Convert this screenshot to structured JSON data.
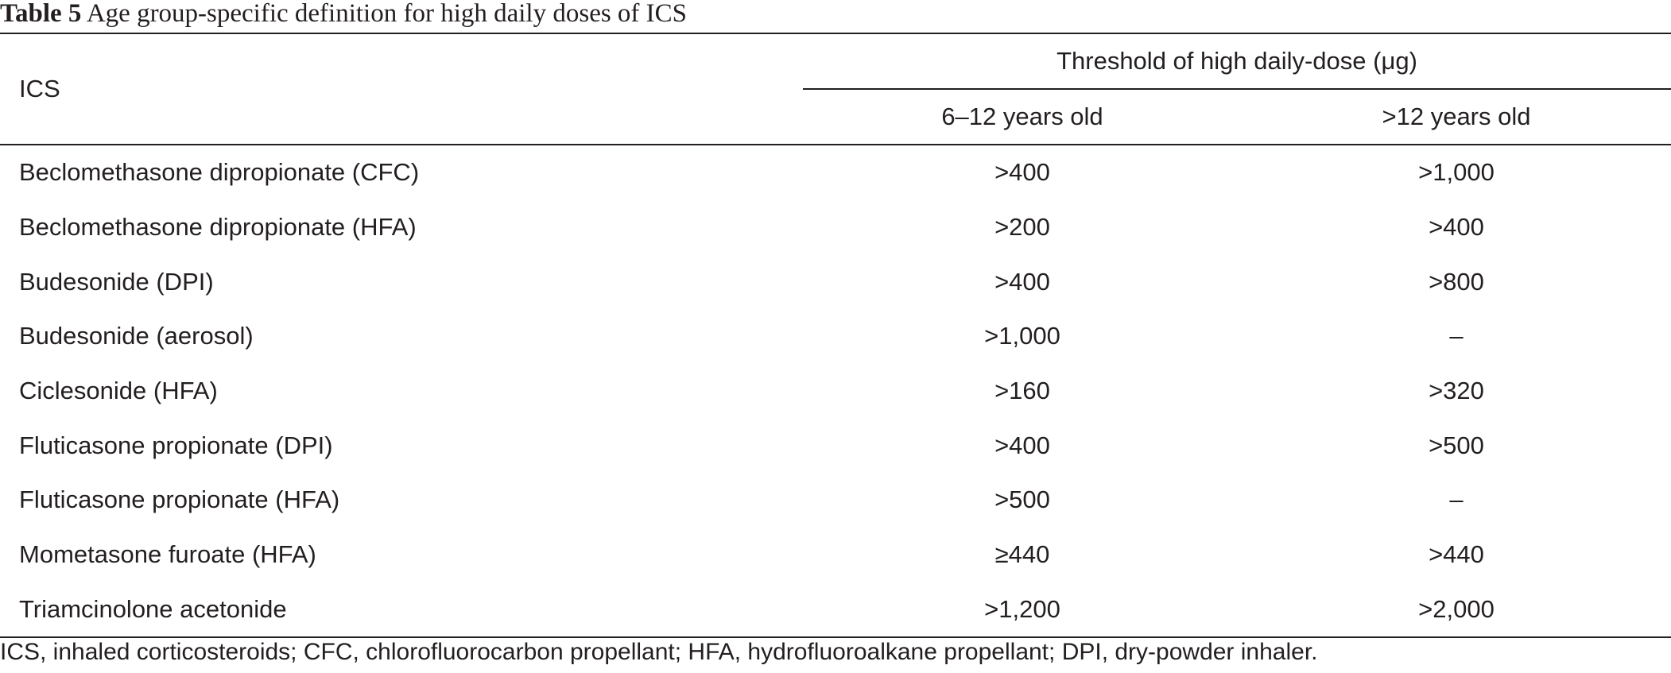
{
  "caption": {
    "label": "Table 5",
    "title": "Age group-specific definition for high daily doses of ICS"
  },
  "header": {
    "first_col": "ICS",
    "group": "Threshold of high daily-dose (μg)",
    "sub_cols": [
      "6–12 years old",
      ">12 years old"
    ]
  },
  "rows": [
    {
      "ics": "Beclomethasone dipropionate (CFC)",
      "age_6_12": ">400",
      "age_over_12": ">1,000"
    },
    {
      "ics": "Beclomethasone dipropionate (HFA)",
      "age_6_12": ">200",
      "age_over_12": ">400"
    },
    {
      "ics": "Budesonide (DPI)",
      "age_6_12": ">400",
      "age_over_12": ">800"
    },
    {
      "ics": "Budesonide (aerosol)",
      "age_6_12": ">1,000",
      "age_over_12": "–"
    },
    {
      "ics": "Ciclesonide (HFA)",
      "age_6_12": ">160",
      "age_over_12": ">320"
    },
    {
      "ics": "Fluticasone propionate (DPI)",
      "age_6_12": ">400",
      "age_over_12": ">500"
    },
    {
      "ics": "Fluticasone propionate (HFA)",
      "age_6_12": ">500",
      "age_over_12": "–"
    },
    {
      "ics": "Mometasone furoate (HFA)",
      "age_6_12": "≥440",
      "age_over_12": ">440"
    },
    {
      "ics": "Triamcinolone acetonide",
      "age_6_12": ">1,200",
      "age_over_12": ">2,000"
    }
  ],
  "footnote": "ICS, inhaled corticosteroids; CFC, chlorofluorocarbon propellant; HFA, hydrofluoroalkane propellant; DPI, dry-powder inhaler."
}
